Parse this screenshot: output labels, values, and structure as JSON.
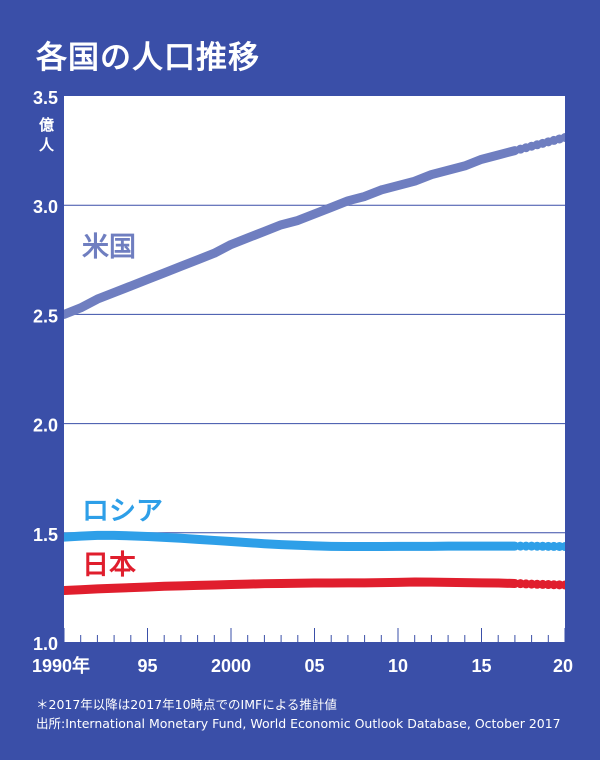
{
  "title": "各国の人口推移",
  "footnote": "＊2017年以降は2017年10時点でのIMFによる推計値",
  "source": "出所:International Monetary Fund, World Economic Outlook Database, October 2017",
  "chart_data": {
    "type": "line",
    "title": "各国の人口推移",
    "ylabel": "億人",
    "ylim": [
      1.0,
      3.5
    ],
    "xlim": [
      1990,
      2020
    ],
    "yticks": [
      {
        "value": 1.0,
        "label": "1.0"
      },
      {
        "value": 1.5,
        "label": "1.5"
      },
      {
        "value": 2.0,
        "label": "2.0"
      },
      {
        "value": 2.5,
        "label": "2.5"
      },
      {
        "value": 3.0,
        "label": "3.0"
      },
      {
        "value": 3.5,
        "label": "3.5"
      }
    ],
    "y_unit_label": "億\n人",
    "xticks": [
      {
        "value": 1990,
        "label": "1990年"
      },
      {
        "value": 1995,
        "label": "95"
      },
      {
        "value": 2000,
        "label": "2000"
      },
      {
        "value": 2005,
        "label": "05"
      },
      {
        "value": 2010,
        "label": "10"
      },
      {
        "value": 2015,
        "label": "15"
      },
      {
        "value": 2020,
        "label": "20"
      }
    ],
    "grid": true,
    "estimate_from": 2017,
    "series": [
      {
        "name": "米国",
        "color": "#6f7ec0",
        "x": [
          1990,
          1991,
          1992,
          1993,
          1994,
          1995,
          1996,
          1997,
          1998,
          1999,
          2000,
          2001,
          2002,
          2003,
          2004,
          2005,
          2006,
          2007,
          2008,
          2009,
          2010,
          2011,
          2012,
          2013,
          2014,
          2015,
          2016,
          2017,
          2018,
          2019,
          2020
        ],
        "values": [
          2.5,
          2.53,
          2.57,
          2.6,
          2.63,
          2.66,
          2.69,
          2.72,
          2.75,
          2.78,
          2.82,
          2.85,
          2.88,
          2.91,
          2.93,
          2.96,
          2.99,
          3.02,
          3.04,
          3.07,
          3.09,
          3.11,
          3.14,
          3.16,
          3.18,
          3.21,
          3.23,
          3.25,
          3.27,
          3.29,
          3.31
        ]
      },
      {
        "name": "ロシア",
        "color": "#2e9fe8",
        "x": [
          1990,
          1991,
          1992,
          1993,
          1994,
          1995,
          1996,
          1997,
          1998,
          1999,
          2000,
          2001,
          2002,
          2003,
          2004,
          2005,
          2006,
          2007,
          2008,
          2009,
          2010,
          2011,
          2012,
          2013,
          2014,
          2015,
          2016,
          2017,
          2018,
          2019,
          2020
        ],
        "values": [
          1.48,
          1.485,
          1.488,
          1.488,
          1.486,
          1.483,
          1.479,
          1.475,
          1.47,
          1.465,
          1.46,
          1.455,
          1.45,
          1.446,
          1.443,
          1.44,
          1.438,
          1.437,
          1.437,
          1.437,
          1.438,
          1.438,
          1.438,
          1.439,
          1.439,
          1.439,
          1.439,
          1.439,
          1.439,
          1.438,
          1.437
        ]
      },
      {
        "name": "日本",
        "color": "#e01e2d",
        "x": [
          1990,
          1991,
          1992,
          1993,
          1994,
          1995,
          1996,
          1997,
          1998,
          1999,
          2000,
          2001,
          2002,
          2003,
          2004,
          2005,
          2006,
          2007,
          2008,
          2009,
          2010,
          2011,
          2012,
          2013,
          2014,
          2015,
          2016,
          2017,
          2018,
          2019,
          2020
        ],
        "values": [
          1.236,
          1.239,
          1.243,
          1.246,
          1.249,
          1.252,
          1.255,
          1.257,
          1.259,
          1.261,
          1.263,
          1.265,
          1.267,
          1.268,
          1.269,
          1.27,
          1.27,
          1.271,
          1.271,
          1.272,
          1.273,
          1.275,
          1.274,
          1.273,
          1.272,
          1.271,
          1.27,
          1.268,
          1.265,
          1.263,
          1.261
        ]
      }
    ]
  }
}
